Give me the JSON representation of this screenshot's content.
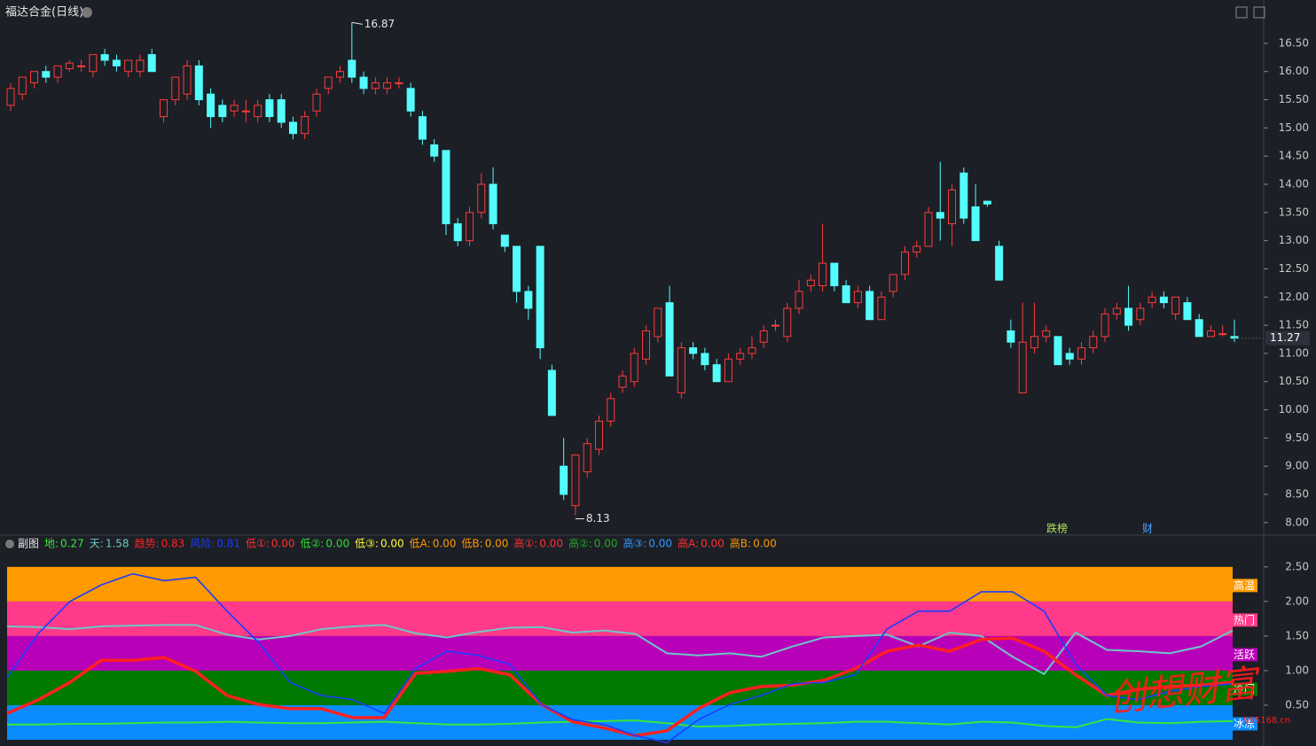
{
  "chart_data": [
    {
      "type": "candlestick",
      "title": "福达合金(日线)",
      "up_color": "#ff3b3b",
      "down_color": "#54fcfc",
      "ylim": [
        7.84,
        17.19
      ],
      "yticks": [
        {
          "value": 8,
          "label": "8.00"
        },
        {
          "value": 8.5,
          "label": "8.50"
        },
        {
          "value": 9,
          "label": "9.00"
        },
        {
          "value": 9.5,
          "label": "9.50"
        },
        {
          "value": 10,
          "label": "10.00"
        },
        {
          "value": 10.5,
          "label": "10.50"
        },
        {
          "value": 11,
          "label": "11.00"
        },
        {
          "value": 11.5,
          "label": "11.50"
        },
        {
          "value": 12,
          "label": "12.00"
        },
        {
          "value": 12.5,
          "label": "12.50"
        },
        {
          "value": 13,
          "label": "13.00"
        },
        {
          "value": 13.5,
          "label": "13.50"
        },
        {
          "value": 14,
          "label": "14.00"
        },
        {
          "value": 14.5,
          "label": "14.50"
        },
        {
          "value": 15,
          "label": "15.00"
        },
        {
          "value": 15.5,
          "label": "15.50"
        },
        {
          "value": 16,
          "label": "16.00"
        },
        {
          "value": 16.5,
          "label": "16.50"
        }
      ],
      "tags": [
        {
          "text": "跌榜",
          "color": "#b5e35a"
        },
        {
          "text": "财",
          "color": "#4aa3ff"
        }
      ],
      "ohlc": [
        [
          15.4,
          15.8,
          15.3,
          15.7
        ],
        [
          15.6,
          15.9,
          15.5,
          15.9
        ],
        [
          15.8,
          16.0,
          15.7,
          16.0
        ],
        [
          16.0,
          16.1,
          15.8,
          15.9
        ],
        [
          15.9,
          16.1,
          15.8,
          16.1
        ],
        [
          16.05,
          16.2,
          16.0,
          16.15
        ],
        [
          16.1,
          16.2,
          16.0,
          16.1
        ],
        [
          16.0,
          16.3,
          15.9,
          16.3
        ],
        [
          16.3,
          16.4,
          16.1,
          16.2
        ],
        [
          16.2,
          16.3,
          16.0,
          16.1
        ],
        [
          16.0,
          16.2,
          15.9,
          16.2
        ],
        [
          16.0,
          16.3,
          15.9,
          16.2
        ],
        [
          16.3,
          16.4,
          16.0,
          16.0
        ],
        [
          15.2,
          15.5,
          15.1,
          15.5
        ],
        [
          15.5,
          15.9,
          15.4,
          15.9
        ],
        [
          15.6,
          16.2,
          15.5,
          16.1
        ],
        [
          16.1,
          16.2,
          15.4,
          15.5
        ],
        [
          15.6,
          15.7,
          15.0,
          15.2
        ],
        [
          15.4,
          15.5,
          15.1,
          15.2
        ],
        [
          15.3,
          15.5,
          15.2,
          15.4
        ],
        [
          15.3,
          15.5,
          15.1,
          15.3
        ],
        [
          15.2,
          15.5,
          15.1,
          15.4
        ],
        [
          15.5,
          15.6,
          15.1,
          15.2
        ],
        [
          15.5,
          15.6,
          15.0,
          15.1
        ],
        [
          15.1,
          15.2,
          14.8,
          14.9
        ],
        [
          14.9,
          15.3,
          14.8,
          15.2
        ],
        [
          15.3,
          15.7,
          15.2,
          15.6
        ],
        [
          15.7,
          15.9,
          15.6,
          15.9
        ],
        [
          15.9,
          16.1,
          15.8,
          16.0
        ],
        [
          16.2,
          16.87,
          15.8,
          15.9
        ],
        [
          15.9,
          16.0,
          15.6,
          15.7
        ],
        [
          15.7,
          15.9,
          15.6,
          15.8
        ],
        [
          15.7,
          15.9,
          15.6,
          15.8
        ],
        [
          15.8,
          15.9,
          15.7,
          15.8
        ],
        [
          15.7,
          15.8,
          15.2,
          15.3
        ],
        [
          15.2,
          15.3,
          14.7,
          14.8
        ],
        [
          14.7,
          14.8,
          14.4,
          14.5
        ],
        [
          14.6,
          14.6,
          13.1,
          13.3
        ],
        [
          13.3,
          13.4,
          12.9,
          13.0
        ],
        [
          13.0,
          13.6,
          12.9,
          13.5
        ],
        [
          13.5,
          14.2,
          13.4,
          14.0
        ],
        [
          14.0,
          14.3,
          13.2,
          13.3
        ],
        [
          13.1,
          13.1,
          12.8,
          12.9
        ],
        [
          12.9,
          12.9,
          11.9,
          12.1
        ],
        [
          12.1,
          12.2,
          11.6,
          11.8
        ],
        [
          12.9,
          12.9,
          10.9,
          11.1
        ],
        [
          10.7,
          10.8,
          9.9,
          9.9
        ],
        [
          9.0,
          9.5,
          8.4,
          8.5
        ],
        [
          8.3,
          9.2,
          8.13,
          9.2
        ],
        [
          8.9,
          9.5,
          8.8,
          9.4
        ],
        [
          9.3,
          9.9,
          9.2,
          9.8
        ],
        [
          9.8,
          10.3,
          9.7,
          10.2
        ],
        [
          10.4,
          10.7,
          10.3,
          10.6
        ],
        [
          10.5,
          11.1,
          10.4,
          11.0
        ],
        [
          10.9,
          11.5,
          10.8,
          11.4
        ],
        [
          11.3,
          11.8,
          11.2,
          11.8
        ],
        [
          11.9,
          12.2,
          10.6,
          10.6
        ],
        [
          10.3,
          11.2,
          10.2,
          11.1
        ],
        [
          11.1,
          11.2,
          10.9,
          11.0
        ],
        [
          11.0,
          11.1,
          10.7,
          10.8
        ],
        [
          10.8,
          10.9,
          10.5,
          10.5
        ],
        [
          10.5,
          11.0,
          10.5,
          10.9
        ],
        [
          10.9,
          11.1,
          10.8,
          11.0
        ],
        [
          11.0,
          11.3,
          10.9,
          11.1
        ],
        [
          11.2,
          11.5,
          11.1,
          11.4
        ],
        [
          11.5,
          11.6,
          11.4,
          11.5
        ],
        [
          11.3,
          11.9,
          11.2,
          11.8
        ],
        [
          11.8,
          12.3,
          11.7,
          12.1
        ],
        [
          12.2,
          12.4,
          12.1,
          12.3
        ],
        [
          12.2,
          13.3,
          12.1,
          12.6
        ],
        [
          12.6,
          12.6,
          12.1,
          12.2
        ],
        [
          12.2,
          12.3,
          11.9,
          11.9
        ],
        [
          11.9,
          12.2,
          11.8,
          12.1
        ],
        [
          12.1,
          12.2,
          11.6,
          11.6
        ],
        [
          11.6,
          12.1,
          11.6,
          12.0
        ],
        [
          12.1,
          12.4,
          12.0,
          12.4
        ],
        [
          12.4,
          12.9,
          12.3,
          12.8
        ],
        [
          12.8,
          13.0,
          12.7,
          12.9
        ],
        [
          12.9,
          13.6,
          12.9,
          13.5
        ],
        [
          13.5,
          14.4,
          13.0,
          13.4
        ],
        [
          13.3,
          14.0,
          12.9,
          13.9
        ],
        [
          14.2,
          14.3,
          13.3,
          13.4
        ],
        [
          13.6,
          14.0,
          13.0,
          13.0
        ],
        [
          13.7,
          13.7,
          13.6,
          13.65
        ],
        [
          12.9,
          13.0,
          12.3,
          12.3
        ],
        [
          11.4,
          11.6,
          11.1,
          11.2
        ],
        [
          10.3,
          11.9,
          10.3,
          11.2
        ],
        [
          11.1,
          11.9,
          11.0,
          11.3
        ],
        [
          11.3,
          11.5,
          11.2,
          11.4
        ],
        [
          11.3,
          11.3,
          10.8,
          10.8
        ],
        [
          11.0,
          11.1,
          10.8,
          10.9
        ],
        [
          10.9,
          11.2,
          10.8,
          11.1
        ],
        [
          11.1,
          11.4,
          11.0,
          11.3
        ],
        [
          11.3,
          11.8,
          11.2,
          11.7
        ],
        [
          11.7,
          11.9,
          11.6,
          11.8
        ],
        [
          11.8,
          12.2,
          11.4,
          11.5
        ],
        [
          11.6,
          11.9,
          11.5,
          11.8
        ],
        [
          11.9,
          12.1,
          11.8,
          12.0
        ],
        [
          12.0,
          12.1,
          11.8,
          11.9
        ],
        [
          11.7,
          12.0,
          11.6,
          12.0
        ],
        [
          11.9,
          12.0,
          11.6,
          11.6
        ],
        [
          11.6,
          11.7,
          11.3,
          11.3
        ],
        [
          11.3,
          11.5,
          11.3,
          11.4
        ],
        [
          11.35,
          11.5,
          11.3,
          11.35
        ],
        [
          11.3,
          11.6,
          11.2,
          11.27
        ]
      ]
    },
    {
      "type": "line",
      "title": "副图",
      "ylim": [
        -0.09,
        2.69
      ],
      "yticks": [
        {
          "value": 0.5,
          "label": "0.50"
        },
        {
          "value": 1,
          "label": "1.00"
        },
        {
          "value": 1.5,
          "label": "1.50"
        },
        {
          "value": 2,
          "label": "2.00"
        },
        {
          "value": 2.5,
          "label": "2.50"
        }
      ],
      "bands": [
        {
          "name": "冰冻",
          "from": 0,
          "to": 0.5,
          "color": "#0a8cff"
        },
        {
          "name": "冷门",
          "from": 0.5,
          "to": 1,
          "color": "#007a00"
        },
        {
          "name": "活跃",
          "from": 1,
          "to": 1.5,
          "color": "#b800b8"
        },
        {
          "name": "热门",
          "from": 1.5,
          "to": 2,
          "color": "#ff3a8a"
        },
        {
          "name": "高温",
          "from": 2,
          "to": 2.5,
          "color": "#ff9a00"
        }
      ],
      "series": [
        {
          "name": "地:",
          "color": "#39e639",
          "width": 2,
          "values": [
            0.22,
            0.22,
            0.23,
            0.23,
            0.24,
            0.25,
            0.25,
            0.26,
            0.25,
            0.24,
            0.24,
            0.25,
            0.26,
            0.24,
            0.22,
            0.22,
            0.23,
            0.25,
            0.26,
            0.27,
            0.28,
            0.24,
            0.19,
            0.2,
            0.22,
            0.23,
            0.24,
            0.26,
            0.26,
            0.24,
            0.22,
            0.26,
            0.25,
            0.2,
            0.18,
            0.3,
            0.25,
            0.24,
            0.26,
            0.27
          ]
        },
        {
          "name": "天:",
          "color": "#6ec6c6",
          "width": 2,
          "values": [
            1.64,
            1.63,
            1.6,
            1.64,
            1.65,
            1.66,
            1.66,
            1.52,
            1.45,
            1.5,
            1.6,
            1.64,
            1.66,
            1.54,
            1.48,
            1.56,
            1.62,
            1.63,
            1.55,
            1.58,
            1.53,
            1.25,
            1.22,
            1.25,
            1.2,
            1.35,
            1.48,
            1.5,
            1.52,
            1.35,
            1.55,
            1.5,
            1.2,
            0.95,
            1.55,
            1.3,
            1.28,
            1.25,
            1.35,
            1.58
          ]
        },
        {
          "name": "趋势:",
          "color": "#ff2020",
          "width": 3.5,
          "values": [
            0.38,
            0.58,
            0.83,
            1.15,
            1.15,
            1.19,
            0.99,
            0.64,
            0.51,
            0.45,
            0.45,
            0.32,
            0.32,
            0.96,
            0.99,
            1.03,
            0.94,
            0.51,
            0.26,
            0.17,
            0.06,
            0.13,
            0.45,
            0.68,
            0.77,
            0.79,
            0.86,
            1.03,
            1.28,
            1.37,
            1.28,
            1.45,
            1.47,
            1.28,
            0.94,
            0.64,
            0.73,
            0.77,
            0.79,
            0.83
          ]
        },
        {
          "name": "风险:",
          "color": "#1a3cff",
          "width": 1.6,
          "values": [
            0.9,
            1.54,
            2.0,
            2.24,
            2.4,
            2.3,
            2.35,
            1.86,
            1.41,
            0.83,
            0.64,
            0.58,
            0.38,
            1.03,
            1.28,
            1.22,
            1.09,
            0.51,
            0.29,
            0.22,
            0.06,
            -0.04,
            0.29,
            0.51,
            0.64,
            0.81,
            0.83,
            0.94,
            1.6,
            1.86,
            1.86,
            2.14,
            2.14,
            1.86,
            1.09,
            0.64,
            0.58,
            0.7,
            0.77,
            0.81
          ]
        }
      ],
      "signals": [
        {
          "name": "低①:",
          "color": "#ff3030",
          "value": 0,
          "value_label": "0.00"
        },
        {
          "name": "低②:",
          "color": "#33dd33",
          "value": 0,
          "value_label": "0.00"
        },
        {
          "name": "低③:",
          "color": "#ffff33",
          "value": 0,
          "value_label": "0.00"
        },
        {
          "name": "低A:",
          "color": "#ff9900",
          "value": 0,
          "value_label": "0.00"
        },
        {
          "name": "低B:",
          "color": "#ff9900",
          "value": 0,
          "value_label": "0.00"
        },
        {
          "name": "高①:",
          "color": "#ff3030",
          "value": 0,
          "value_label": "0.00"
        },
        {
          "name": "高②:",
          "color": "#22aa22",
          "value": 0,
          "value_label": "0.00"
        },
        {
          "name": "高③:",
          "color": "#3399ff",
          "value": 0,
          "value_label": "0.00"
        },
        {
          "name": "高A:",
          "color": "#ff3030",
          "value": 0,
          "value_label": "0.00"
        },
        {
          "name": "高B:",
          "color": "#ff9900",
          "value": 0,
          "value_label": "0.00"
        }
      ]
    }
  ],
  "watermark": {
    "text": "创想财富",
    "url": "995168.cn"
  }
}
